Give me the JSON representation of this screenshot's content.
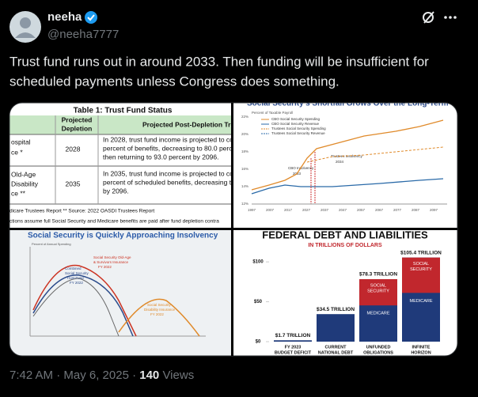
{
  "author": {
    "name": "neeha",
    "handle": "@neeha7777"
  },
  "tweet": {
    "lines": [
      "Trust fund runs out in around 2033. Then funding will be insufficient for",
      "scheduled payments unless Congress does something."
    ]
  },
  "media": {
    "table_image": {
      "title": "Table 1: Trust Fund Status",
      "headers": [
        [
          "Projected",
          "Depletion"
        ],
        "Projected Post-Depletion Tre"
      ],
      "rows": [
        {
          "program": [
            "ospital",
            "ce *"
          ],
          "year": "2028",
          "detail": [
            "In 2028, trust fund income is projected to co",
            "percent of benefits, decreasing to 80.0 perce",
            "then returning to 93.0 percent by 2096."
          ]
        },
        {
          "program": [
            "Old-Age",
            "Disability",
            "ce **"
          ],
          "year": "2035",
          "detail": [
            "In 2035, trust fund income is projected to co",
            "percent of scheduled benefits, decreasing t",
            "by 2096."
          ]
        }
      ],
      "notes": [
        "dicare Trustees Report    ** Source: 2022 OASDI Trustees Report",
        "ctions assume full Social Security and Medicare benefits are paid after fund depletion contra"
      ]
    },
    "shortfall_image": {
      "title": "Social Security's Shortfall Grows Over the Long-Term",
      "axis_label": "Percent of Taxable Payroll",
      "legend": [
        "CBO Social Security Spending",
        "CBO Social Security Revenue",
        "Trustees Social Security Spending",
        "Trustees Social Security Revenue"
      ],
      "annotations": [
        [
          "CBO Insolvency",
          "2033"
        ],
        [
          "Trustees Insolvency",
          "2034"
        ]
      ],
      "yticks": [
        "22%",
        "20%",
        "18%",
        "16%",
        "14%",
        "12%"
      ],
      "xticks": [
        "1997",
        "2007",
        "2017",
        "2027",
        "2037",
        "2047",
        "2057",
        "2067",
        "2077",
        "2087",
        "2097"
      ]
    },
    "insolvency_image": {
      "title": "Social Security is Quickly Approaching Insolvency",
      "axis_label": "Percent of Annual Spending",
      "annotations": [
        [
          "Social Security Old-Age",
          "& Survivors Insurance",
          "FY 2022"
        ],
        [
          "Combined",
          "Social Security",
          "Trust Fund",
          "FY 2022"
        ],
        [
          "Social Security",
          "Disability Insurance",
          "FY 2022"
        ]
      ]
    },
    "debt_chart": {
      "type": "bar",
      "title": "FEDERAL DEBT AND LIABILITIES",
      "subtitle": "IN TRILLIONS OF DOLLARS",
      "categories": [
        [
          "FY 2023",
          "BUDGET DEFICIT"
        ],
        [
          "CURRENT",
          "NATIONAL DEBT"
        ],
        [
          "UNFUNDED",
          "OBLIGATIONS"
        ],
        [
          "INFINITE",
          "HORIZON"
        ]
      ],
      "values": [
        1.7,
        34.5,
        78.3,
        105.4
      ],
      "value_labels": [
        "$1.7 TRILLION",
        "$34.5 TRILLION",
        "$78.3 TRILLION",
        "$105.4 TRILLION"
      ],
      "segment_labels": [
        [],
        [],
        [
          [
            "SOCIAL",
            "SECURITY"
          ],
          [
            "MEDICARE"
          ]
        ],
        [
          [
            "SOCIAL",
            "SECURITY"
          ],
          [
            "MEDICARE"
          ]
        ]
      ],
      "color": "#1f3a7a",
      "ylim": [
        0,
        115
      ],
      "yticks": [
        {
          "value": 0,
          "label": "$0"
        },
        {
          "value": 50,
          "label": "$50"
        },
        {
          "value": 100,
          "label": "$100"
        }
      ]
    }
  },
  "footer": {
    "time": "7:42 AM · May 6, 2025 · ",
    "views": 140,
    "views_label": " Views"
  }
}
